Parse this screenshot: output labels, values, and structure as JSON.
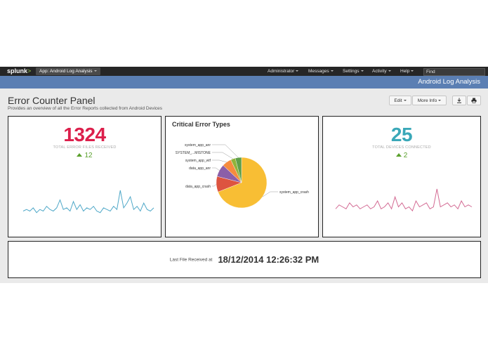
{
  "nav": {
    "logo": "splunk",
    "logo_chevron": ">",
    "app_menu": "App: Android Log Analysis",
    "items": [
      "Administrator",
      "Messages",
      "Settings",
      "Activity",
      "Help"
    ],
    "find_placeholder": "Find"
  },
  "appbar": {
    "title": "Android Log Analysis"
  },
  "dashboard": {
    "title": "Error Counter Panel",
    "description": "Provides an overview of all the Error Reports collected from Android Devices",
    "edit_label": "Edit",
    "more_info_label": "More Info",
    "download_icon": "download-icon",
    "print_icon": "print-icon"
  },
  "panels": {
    "errors": {
      "value": "1324",
      "label": "TOTAL ERROR FILES RECEIVED",
      "trend": "12",
      "color": "#dc1f4b",
      "spark_color": "#4fa8c8",
      "spark": [
        2,
        3,
        2,
        4,
        1,
        3,
        2,
        5,
        3,
        2,
        4,
        9,
        3,
        4,
        2,
        8,
        3,
        6,
        2,
        4,
        3,
        5,
        2,
        1,
        4,
        3,
        2,
        5,
        3,
        15,
        4,
        7,
        11,
        3,
        5,
        2,
        7,
        3,
        2,
        4
      ]
    },
    "critical": {
      "title": "Critical Error Types",
      "chart_data": {
        "type": "pie",
        "categories": [
          "system_app_crash",
          "data_app_crash",
          "data_app_anr",
          "system_app_wtf",
          "SYSTEM_...MISTONE",
          "system_app_anr"
        ],
        "values": [
          69,
          10,
          8,
          6,
          3,
          4
        ],
        "colors": [
          "#f8be34",
          "#dd5440",
          "#8b5fa8",
          "#f58b3e",
          "#8fb33a",
          "#5e9f4a"
        ]
      }
    },
    "devices": {
      "value": "25",
      "label": "TOTAL DEVICES CONNECTED",
      "trend": "2",
      "color": "#3aa8b8",
      "spark_color": "#d36a93",
      "spark": [
        2,
        4,
        3,
        2,
        5,
        3,
        4,
        2,
        3,
        4,
        2,
        3,
        6,
        2,
        3,
        5,
        2,
        8,
        3,
        5,
        2,
        3,
        1,
        6,
        3,
        4,
        5,
        2,
        3,
        12,
        3,
        4,
        5,
        3,
        4,
        2,
        6,
        3,
        4,
        3
      ]
    },
    "last_file": {
      "label": "Last File Received at",
      "value": "18/12/2014 12:26:32 PM"
    }
  }
}
